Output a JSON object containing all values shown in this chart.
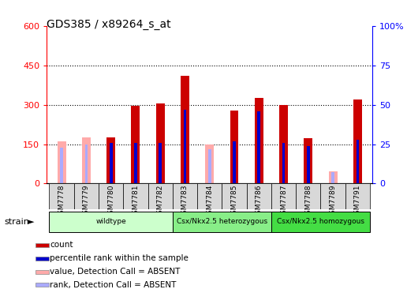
{
  "title": "GDS385 / x89264_s_at",
  "samples": [
    "GSM7778",
    "GSM7779",
    "GSM7780",
    "GSM7781",
    "GSM7782",
    "GSM7783",
    "GSM7784",
    "GSM7785",
    "GSM7786",
    "GSM7787",
    "GSM7788",
    "GSM7789",
    "GSM7791"
  ],
  "count_values": [
    0,
    0,
    175,
    295,
    305,
    410,
    0,
    277,
    325,
    298,
    173,
    0,
    320
  ],
  "rank_values": [
    0,
    0,
    26,
    26,
    26,
    47,
    0,
    27,
    46,
    26,
    24,
    0,
    28
  ],
  "absent_value": [
    162,
    175,
    0,
    0,
    0,
    0,
    150,
    0,
    0,
    0,
    0,
    45,
    0
  ],
  "absent_rank": [
    23,
    25,
    0,
    0,
    0,
    0,
    22,
    0,
    0,
    0,
    0,
    7,
    0
  ],
  "groups": [
    {
      "label": "wildtype",
      "start": 0,
      "end": 5
    },
    {
      "label": "Csx/Nkx2.5 heterozygous",
      "start": 5,
      "end": 9
    },
    {
      "label": "Csx/Nkx2.5 homozygous",
      "start": 9,
      "end": 13
    }
  ],
  "group_colors": [
    "#ccffcc",
    "#88ee88",
    "#44dd44"
  ],
  "ylim_left": [
    0,
    600
  ],
  "ylim_right": [
    0,
    100
  ],
  "yticks_left": [
    0,
    150,
    300,
    450,
    600
  ],
  "yticks_right": [
    0,
    25,
    50,
    75,
    100
  ],
  "color_count": "#cc0000",
  "color_rank": "#0000cc",
  "color_absent_val": "#ffaaaa",
  "color_absent_rank": "#aaaaff",
  "bar_width": 0.35,
  "rank_bar_width": 0.12,
  "legend_labels": [
    "count",
    "percentile rank within the sample",
    "value, Detection Call = ABSENT",
    "rank, Detection Call = ABSENT"
  ],
  "legend_colors": [
    "#cc0000",
    "#0000cc",
    "#ffaaaa",
    "#aaaaff"
  ]
}
